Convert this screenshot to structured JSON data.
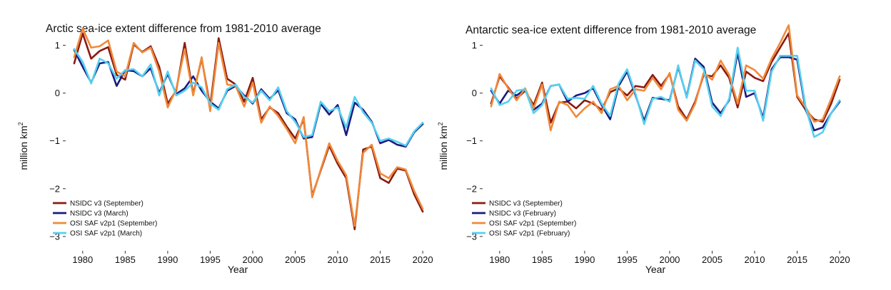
{
  "chart_data": [
    {
      "type": "line",
      "title": "Arctic sea-ice extent difference from 1981-2010 average",
      "xlabel": "Year",
      "ylabel": "million km",
      "ylabel_sup": "2",
      "xlim": [
        1978,
        2021
      ],
      "ylim": [
        -3.3,
        1.5
      ],
      "xticks": [
        1980,
        1985,
        1990,
        1995,
        2000,
        2005,
        2010,
        2015,
        2020
      ],
      "yticks": [
        1,
        0,
        -1,
        -2,
        -3
      ],
      "ytick_labels": [
        "1",
        "0",
        "−1",
        "−2",
        "−3"
      ],
      "legend_position": "lower-left",
      "x": [
        1979,
        1980,
        1981,
        1982,
        1983,
        1984,
        1985,
        1986,
        1987,
        1988,
        1989,
        1990,
        1991,
        1992,
        1993,
        1994,
        1995,
        1996,
        1997,
        1998,
        1999,
        2000,
        2001,
        2002,
        2003,
        2004,
        2005,
        2006,
        2007,
        2008,
        2009,
        2010,
        2011,
        2012,
        2013,
        2014,
        2015,
        2016,
        2017,
        2018,
        2019,
        2020
      ],
      "series": [
        {
          "name": "NSIDC v3 (September)",
          "color": "#8b1a10",
          "values": [
            0.62,
            1.25,
            0.72,
            0.88,
            0.96,
            0.38,
            0.28,
            1.02,
            0.86,
            0.98,
            0.55,
            -0.22,
            0.05,
            1.05,
            -0.02,
            0.72,
            -0.28,
            1.15,
            0.3,
            0.18,
            -0.18,
            0.32,
            -0.55,
            -0.3,
            -0.42,
            -0.7,
            -0.95,
            -0.55,
            -2.15,
            -1.62,
            -1.1,
            -1.48,
            -1.78,
            -2.85,
            -1.18,
            -1.12,
            -1.78,
            -1.88,
            -1.58,
            -1.62,
            -2.12,
            -2.48
          ]
        },
        {
          "name": "NSIDC v3 (March)",
          "color": "#1a1a80",
          "values": [
            0.9,
            0.55,
            0.22,
            0.62,
            0.65,
            0.15,
            0.48,
            0.46,
            0.35,
            0.52,
            0.0,
            0.4,
            -0.02,
            0.1,
            0.35,
            0.05,
            -0.18,
            -0.32,
            0.05,
            0.15,
            -0.05,
            -0.22,
            0.08,
            -0.12,
            0.06,
            -0.42,
            -0.55,
            -0.95,
            -0.92,
            -0.22,
            -0.45,
            -0.25,
            -0.88,
            -0.2,
            -0.35,
            -0.6,
            -1.05,
            -0.98,
            -1.08,
            -1.12,
            -0.82,
            -0.65
          ]
        },
        {
          "name": "OSI SAF v2p1 (September)",
          "color": "#f0893a",
          "values": [
            0.75,
            1.35,
            0.95,
            0.98,
            1.1,
            0.45,
            0.35,
            1.05,
            0.85,
            0.95,
            0.45,
            -0.3,
            0.08,
            0.92,
            -0.05,
            0.75,
            -0.38,
            1.05,
            0.18,
            0.15,
            -0.28,
            0.22,
            -0.62,
            -0.28,
            -0.48,
            -0.75,
            -1.05,
            -0.5,
            -2.18,
            -1.6,
            -1.05,
            -1.42,
            -1.72,
            -2.78,
            -1.25,
            -1.08,
            -1.68,
            -1.78,
            -1.55,
            -1.6,
            -2.05,
            -2.42
          ]
        },
        {
          "name": "OSI SAF v2p1 (March)",
          "color": "#55d0f0",
          "values": [
            0.92,
            0.65,
            0.2,
            0.72,
            0.62,
            0.3,
            0.48,
            0.5,
            0.35,
            0.6,
            -0.05,
            0.45,
            -0.05,
            0.05,
            0.22,
            0.12,
            -0.22,
            -0.35,
            0.08,
            0.18,
            -0.08,
            -0.2,
            0.05,
            -0.15,
            0.12,
            -0.38,
            -0.6,
            -0.92,
            -0.88,
            -0.18,
            -0.38,
            -0.3,
            -0.72,
            -0.08,
            -0.4,
            -0.62,
            -1.0,
            -0.95,
            -1.02,
            -1.1,
            -0.8,
            -0.62
          ]
        }
      ]
    },
    {
      "type": "line",
      "title": "Antarctic sea-ice extent difference from 1981-2010 average",
      "xlabel": "Year",
      "ylabel": "million km",
      "ylabel_sup": "2",
      "xlim": [
        1978,
        2021
      ],
      "ylim": [
        -3.3,
        1.5
      ],
      "xticks": [
        1980,
        1985,
        1990,
        1995,
        2000,
        2005,
        2010,
        2015,
        2020
      ],
      "yticks": [
        1,
        0,
        -1,
        -2,
        -3
      ],
      "ytick_labels": [
        "1",
        "0",
        "−1",
        "−2",
        "−3"
      ],
      "legend_position": "lower-left",
      "x": [
        1979,
        1980,
        1981,
        1982,
        1983,
        1984,
        1985,
        1986,
        1987,
        1988,
        1989,
        1990,
        1991,
        1992,
        1993,
        1994,
        1995,
        1996,
        1997,
        1998,
        1999,
        2000,
        2001,
        2002,
        2003,
        2004,
        2005,
        2006,
        2007,
        2008,
        2009,
        2010,
        2011,
        2012,
        2013,
        2014,
        2015,
        2016,
        2017,
        2018,
        2019,
        2020
      ],
      "series": [
        {
          "name": "NSIDC v3 (September)",
          "color": "#8b1a10",
          "values": [
            -0.22,
            0.35,
            0.12,
            -0.12,
            0.05,
            -0.25,
            0.22,
            -0.62,
            -0.2,
            -0.18,
            -0.32,
            -0.15,
            -0.22,
            -0.35,
            0.02,
            0.1,
            -0.05,
            0.15,
            0.12,
            0.38,
            0.15,
            0.4,
            -0.28,
            -0.55,
            -0.18,
            0.38,
            0.35,
            0.58,
            0.32,
            -0.3,
            0.45,
            0.32,
            0.25,
            0.65,
            0.95,
            1.25,
            -0.08,
            -0.35,
            -0.55,
            -0.6,
            -0.22,
            0.28
          ]
        },
        {
          "name": "NSIDC v3 (February)",
          "color": "#1a1a80",
          "values": [
            0.05,
            -0.22,
            0.05,
            -0.05,
            0.08,
            -0.35,
            -0.22,
            0.15,
            0.18,
            -0.18,
            -0.05,
            0.0,
            0.1,
            -0.25,
            -0.55,
            0.15,
            0.45,
            -0.05,
            -0.58,
            -0.1,
            -0.12,
            -0.15,
            0.55,
            -0.08,
            0.72,
            0.55,
            -0.2,
            -0.42,
            -0.15,
            0.85,
            -0.08,
            0.0,
            -0.52,
            0.5,
            0.75,
            0.75,
            0.7,
            -0.35,
            -0.78,
            -0.72,
            -0.42,
            -0.18
          ]
        },
        {
          "name": "OSI SAF v2p1 (September)",
          "color": "#f0893a",
          "values": [
            -0.28,
            0.4,
            0.1,
            -0.15,
            0.1,
            -0.32,
            0.18,
            -0.78,
            -0.18,
            -0.25,
            -0.5,
            -0.32,
            -0.18,
            -0.42,
            0.08,
            0.15,
            -0.15,
            0.08,
            0.05,
            0.32,
            0.08,
            0.42,
            -0.35,
            -0.58,
            -0.22,
            0.42,
            0.28,
            0.68,
            0.38,
            -0.22,
            0.58,
            0.48,
            0.3,
            0.72,
            1.05,
            1.42,
            -0.05,
            -0.3,
            -0.6,
            -0.55,
            -0.12,
            0.35
          ]
        },
        {
          "name": "OSI SAF v2p1 (February)",
          "color": "#55d0f0",
          "values": [
            0.1,
            -0.25,
            -0.18,
            0.05,
            0.08,
            -0.42,
            -0.25,
            0.15,
            0.18,
            -0.12,
            -0.1,
            -0.12,
            0.15,
            -0.22,
            -0.48,
            0.2,
            0.5,
            -0.02,
            -0.65,
            -0.12,
            -0.08,
            -0.18,
            0.58,
            -0.1,
            0.68,
            0.5,
            -0.28,
            -0.48,
            -0.12,
            0.95,
            0.05,
            0.05,
            -0.58,
            0.45,
            0.78,
            0.78,
            0.78,
            -0.3,
            -0.92,
            -0.82,
            -0.42,
            -0.15
          ]
        }
      ]
    }
  ]
}
